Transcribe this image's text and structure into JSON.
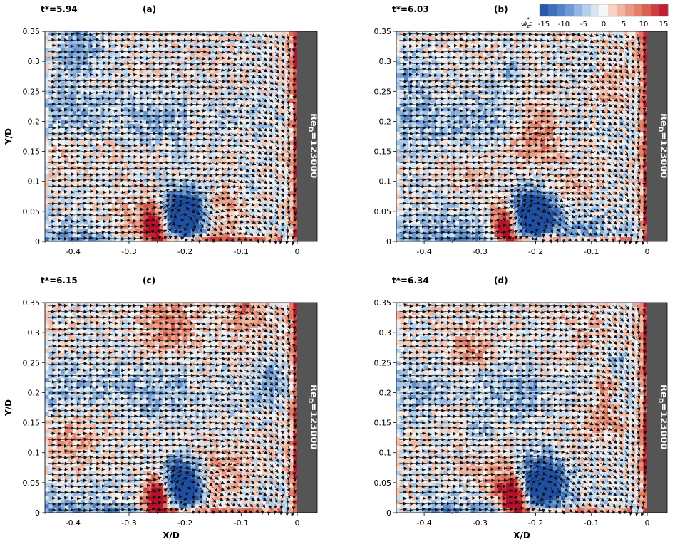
{
  "colors": {
    "negative_strong": "#1f4fa3",
    "negative_mid": "#5b8fd0",
    "negative_light": "#c7dcf0",
    "neutral": "#f7f7f7",
    "positive_light": "#f3c2ad",
    "positive_mid": "#e0705a",
    "positive_strong": "#b8102a",
    "wall": "#555555",
    "arrow": "#111111"
  },
  "colorbar": {
    "title": "ω",
    "title_sub": "z",
    "title_sup": "*",
    "title_colon": ":",
    "ticks": [
      "-15",
      "-10",
      "-5",
      "0",
      "5",
      "10",
      "15"
    ],
    "range": [
      -15,
      15
    ]
  },
  "chart_data": [
    {
      "type": "heatmap",
      "panel": "(a)",
      "time_label": "t*=5.94",
      "wall_label": "Re",
      "wall_label_sub": "D",
      "wall_label_value": "=123000",
      "xlabel": "",
      "ylabel": "Y/D",
      "xlim": [
        -0.45,
        0.0
      ],
      "ylim": [
        0,
        0.35
      ],
      "xticks": [
        "-0.4",
        "-0.3",
        "-0.2",
        "-0.1",
        "0"
      ],
      "yticks": [
        "0",
        "0.05",
        "0.1",
        "0.15",
        "0.2",
        "0.25",
        "0.3",
        "0.35"
      ],
      "vortex_center": [
        -0.205,
        0.045
      ],
      "vortex_sense": "clockwise"
    },
    {
      "type": "heatmap",
      "panel": "(b)",
      "time_label": "t*=6.03",
      "wall_label": "Re",
      "wall_label_sub": "D",
      "wall_label_value": "=123000",
      "xlabel": "",
      "ylabel": "",
      "xlim": [
        -0.45,
        0.0
      ],
      "ylim": [
        0,
        0.35
      ],
      "xticks": [
        "-0.4",
        "-0.3",
        "-0.2",
        "-0.1",
        "0"
      ],
      "yticks": [
        "0",
        "0.05",
        "0.1",
        "0.15",
        "0.2",
        "0.25",
        "0.3",
        "0.35"
      ],
      "vortex_center": [
        -0.205,
        0.045
      ],
      "vortex_sense": "clockwise"
    },
    {
      "type": "heatmap",
      "panel": "(c)",
      "time_label": "t*=6.15",
      "wall_label": "Re",
      "wall_label_sub": "D",
      "wall_label_value": "=123000",
      "xlabel": "X/D",
      "ylabel": "Y/D",
      "xlim": [
        -0.45,
        0.0
      ],
      "ylim": [
        0,
        0.35
      ],
      "xticks": [
        "-0.4",
        "-0.3",
        "-0.2",
        "-0.1",
        "0"
      ],
      "yticks": [
        "0",
        "0.05",
        "0.1",
        "0.15",
        "0.2",
        "0.25",
        "0.3",
        "0.35"
      ],
      "vortex_center": [
        -0.2,
        0.05
      ],
      "vortex_sense": "clockwise"
    },
    {
      "type": "heatmap",
      "panel": "(d)",
      "time_label": "t*=6.34",
      "wall_label": "Re",
      "wall_label_sub": "D",
      "wall_label_value": "=123000",
      "xlabel": "X/D",
      "ylabel": "",
      "xlim": [
        -0.45,
        0.0
      ],
      "ylim": [
        0,
        0.35
      ],
      "xticks": [
        "-0.4",
        "-0.3",
        "-0.2",
        "-0.1",
        "0"
      ],
      "yticks": [
        "0",
        "0.05",
        "0.1",
        "0.15",
        "0.2",
        "0.25",
        "0.3",
        "0.35"
      ],
      "vortex_center": [
        -0.19,
        0.05
      ],
      "vortex_sense": "clockwise"
    }
  ]
}
